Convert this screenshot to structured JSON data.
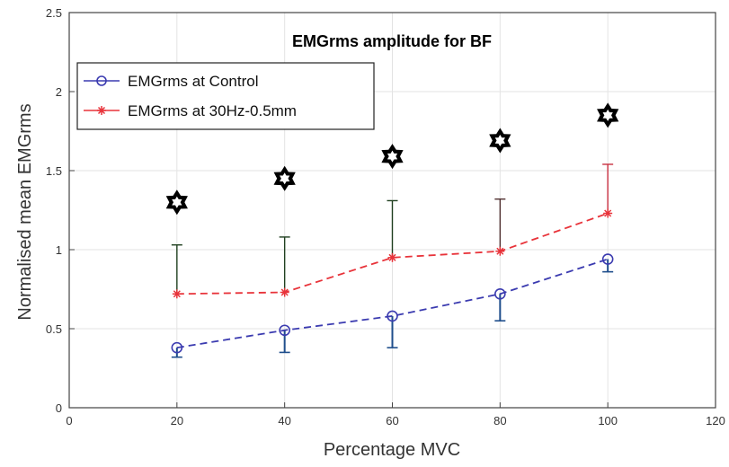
{
  "chart_data": {
    "type": "line",
    "title": "EMGrms amplitude for BF",
    "xlabel": "Percentage MVC",
    "ylabel": "Normalised mean EMGrms",
    "xlim": [
      0,
      120
    ],
    "ylim": [
      0,
      2.5
    ],
    "x_ticks": [
      0,
      20,
      40,
      60,
      80,
      100,
      120
    ],
    "y_ticks": [
      0,
      0.5,
      1,
      1.5,
      2,
      2.5
    ],
    "y_tick_labels": [
      "0",
      "0.5",
      "1",
      "1.5",
      "2",
      "2.5"
    ],
    "grid": true,
    "legend_position": "top-left",
    "x": [
      20,
      40,
      60,
      80,
      100
    ],
    "series": [
      {
        "name": "EMGrms at Control",
        "values": [
          0.38,
          0.49,
          0.58,
          0.72,
          0.94
        ],
        "error_low": [
          0.32,
          0.35,
          0.38,
          0.55,
          0.86
        ],
        "color": "#3b3bb0",
        "error_color": "#1f4e8c",
        "marker": "circle"
      },
      {
        "name": "EMGrms at 30Hz-0.5mm",
        "values": [
          0.72,
          0.73,
          0.95,
          0.99,
          1.23
        ],
        "error_high": [
          1.03,
          1.08,
          1.31,
          1.32,
          1.54
        ],
        "color": "#e8333a",
        "error_color_values": [
          "#204020",
          "#204020",
          "#204020",
          "#503030",
          "#c83040"
        ],
        "marker": "asterisk"
      }
    ],
    "significance_markers": {
      "x": [
        20,
        40,
        60,
        80,
        100
      ],
      "y": [
        1.3,
        1.45,
        1.59,
        1.69,
        1.85
      ],
      "color": "#000000",
      "icon": "six-point-star-icon"
    }
  }
}
